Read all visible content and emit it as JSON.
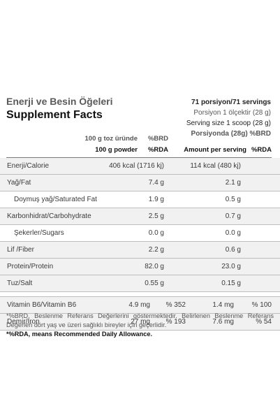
{
  "title": {
    "tr": "Enerji ve Besin Öğeleri",
    "en": "Supplement Facts"
  },
  "serving": {
    "line1": "71 porsiyon/71 servings",
    "line2": "Porsiyon 1 ölçektir (28 g)",
    "line3": "Serving size 1 scoop (28 g)",
    "line4": "Porsiyonda (28g)  %BRD"
  },
  "columns": {
    "row1_left": "100 g toz üründe",
    "row1_brd": "%BRD",
    "row2_left": "100 g powder",
    "row2_rda": "%RDA",
    "row2_right": "Amount per serving",
    "row2_rda2": "%RDA"
  },
  "rows": [
    {
      "label": "Enerji/Calorie",
      "v100": "406 kcal (1716 kj)",
      "p100": "",
      "vserv": "114 kcal (480 kj)",
      "pserv": ""
    },
    {
      "label": "Yağ/Fat",
      "v100": "7.4 g",
      "p100": "",
      "vserv": "2.1 g",
      "pserv": ""
    },
    {
      "label": "Doymuş yağ/Saturated Fat",
      "v100": "1.9 g",
      "p100": "",
      "vserv": "0.5 g",
      "pserv": ""
    },
    {
      "label": "Karbonhidrat/Carbohydrate",
      "v100": "2.5 g",
      "p100": "",
      "vserv": "0.7 g",
      "pserv": ""
    },
    {
      "label": "Şekerler/Sugars",
      "v100": "0.0 g",
      "p100": "",
      "vserv": "0.0 g",
      "pserv": ""
    },
    {
      "label": "Lif /Fiber",
      "v100": "2.2 g",
      "p100": "",
      "vserv": "0.6 g",
      "pserv": ""
    },
    {
      "label": "Protein/Protein",
      "v100": "82.0 g",
      "p100": "",
      "vserv": "23.0 g",
      "pserv": ""
    },
    {
      "label": "Tuz/Salt",
      "v100": "0.55 g",
      "p100": "",
      "vserv": "0.15 g",
      "pserv": ""
    },
    {
      "label": "Vitamin B6/Vitamin B6",
      "v100": "4.9 mg",
      "p100": "% 352",
      "vserv": "1.4 mg",
      "pserv": "% 100"
    },
    {
      "label": "Demir/Iron",
      "v100": "27 mg",
      "p100": "% 193",
      "vserv": "7.6 mg",
      "pserv": "% 54"
    }
  ],
  "footnote": {
    "tr": "*%BRD, Beslenme Referans Değerlerini göstermektedir. Belirlenen Beslenme Referans Değerleri dört yaş ve üzeri sağlıklı bireyler için geçerlidir.",
    "en": "*%RDA, means Recommended Daily Allowance."
  }
}
